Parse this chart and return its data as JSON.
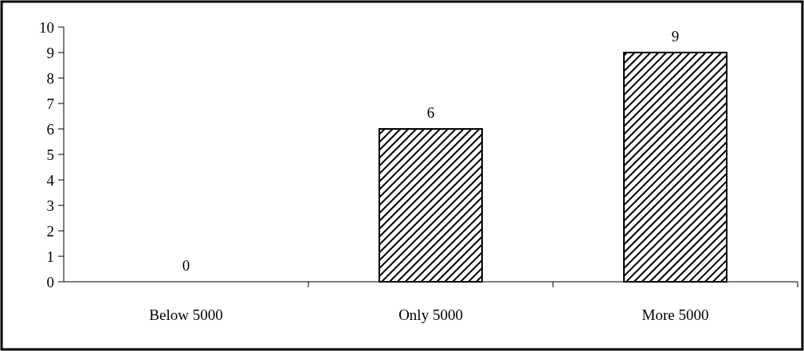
{
  "chart_data": {
    "type": "bar",
    "categories": [
      "Below 5000",
      "Only 5000",
      "More 5000"
    ],
    "values": [
      0,
      6,
      9
    ],
    "color": "#000000",
    "ylim": [
      0,
      10
    ],
    "yticks": [
      0,
      1,
      2,
      3,
      4,
      5,
      6,
      7,
      8,
      9,
      10
    ],
    "data_labels": true
  }
}
